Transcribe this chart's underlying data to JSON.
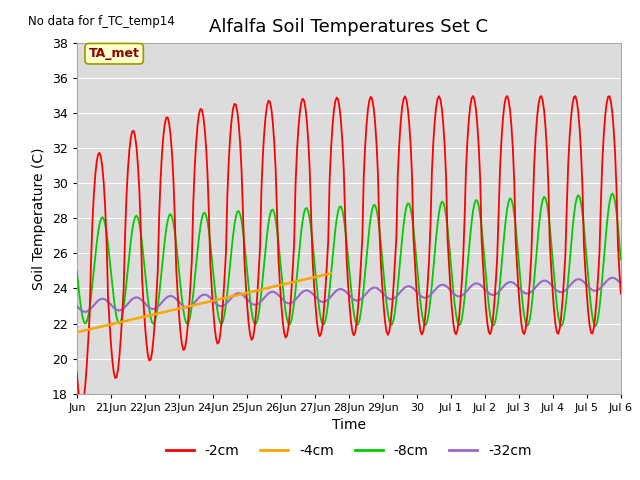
{
  "title": "Alfalfa Soil Temperatures Set C",
  "xlabel": "Time",
  "ylabel": "Soil Temperature (C)",
  "ylim": [
    18,
    38
  ],
  "xlim": [
    0,
    16
  ],
  "bg_color": "#dcdcdc",
  "fig_color": "#ffffff",
  "no_data_text": "No data for f_TC_temp14",
  "ta_met_label": "TA_met",
  "xtick_labels": [
    "Jun",
    "21Jun",
    "22Jun",
    "23Jun",
    "24Jun",
    "25Jun",
    "26Jun",
    "27Jun",
    "28Jun",
    "29Jun",
    "30",
    "Jul 1",
    "Jul 2",
    "Jul 3",
    "Jul 4",
    "Jul 5",
    "Jul 6"
  ],
  "ytick_vals": [
    18,
    20,
    22,
    24,
    26,
    28,
    30,
    32,
    34,
    36,
    38
  ],
  "legend_labels": [
    "-2cm",
    "-4cm",
    "-8cm",
    "-32cm"
  ],
  "legend_colors": [
    "#ff0000",
    "#ffa500",
    "#00cc00",
    "#9933cc"
  ]
}
